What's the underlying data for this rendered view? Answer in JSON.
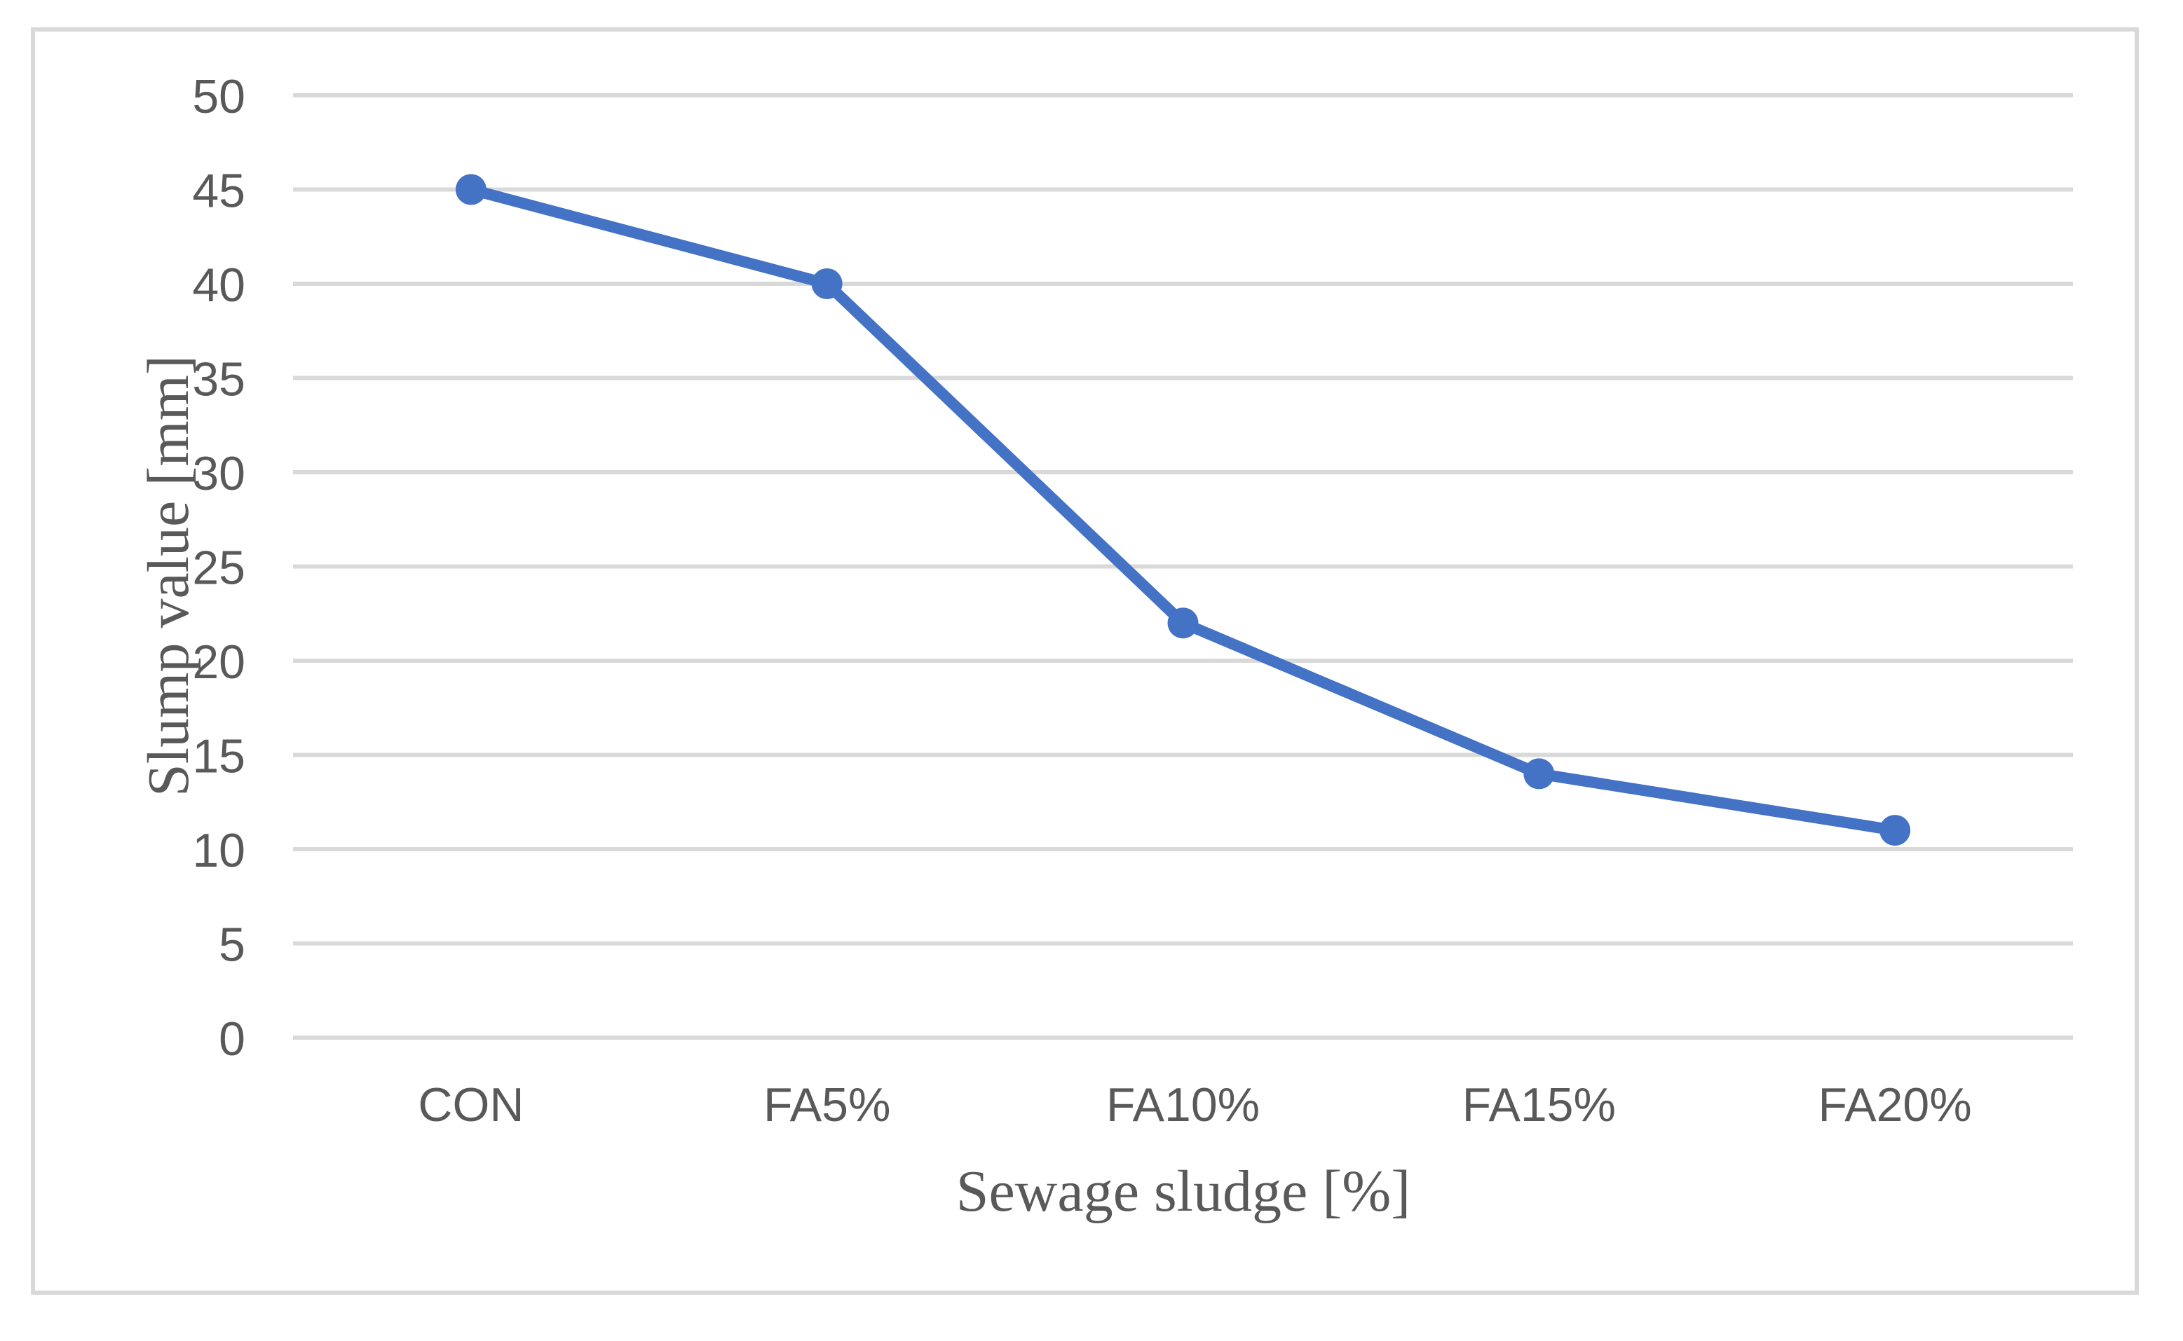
{
  "figure": {
    "background_color": "#ffffff",
    "border_color": "#d9d9d9"
  },
  "chart_data": {
    "type": "line",
    "categories": [
      "CON",
      "FA5%",
      "FA10%",
      "FA15%",
      "FA20%"
    ],
    "series": [
      {
        "name": "Slump value",
        "values": [
          45,
          40,
          22,
          14,
          11
        ]
      }
    ],
    "title": "",
    "xlabel": "Sewage sludge [%]",
    "ylabel": "Slump value [mm]",
    "ylim": [
      0,
      50
    ],
    "ytick_step": 5,
    "yticks": [
      0,
      5,
      10,
      15,
      20,
      25,
      30,
      35,
      40,
      45,
      50
    ],
    "grid": "horizontal",
    "legend_position": "none",
    "line_color": "#4472c4",
    "marker": "circle",
    "gridline_color": "#d9d9d9",
    "tick_label_color": "#595959",
    "axis_title_color": "#595959"
  }
}
